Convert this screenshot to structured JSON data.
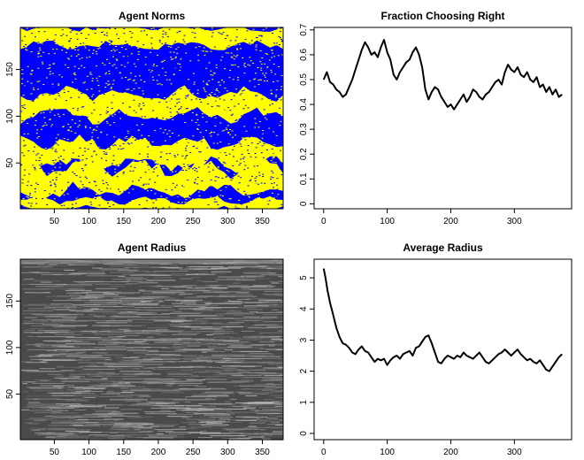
{
  "chart_data": [
    {
      "type": "heatmap",
      "title": "Agent Norms",
      "xlim": [
        1,
        380
      ],
      "ylim": [
        1,
        195
      ],
      "x_ticks": [
        50,
        100,
        150,
        200,
        250,
        300,
        350
      ],
      "y_ticks": [
        50,
        100,
        150
      ],
      "x_tick_labels": [
        "50",
        "100",
        "150",
        "200",
        "250",
        "300",
        "350"
      ],
      "y_tick_labels": [
        "50",
        "100",
        "150"
      ],
      "colors": {
        "left": "#0000ff",
        "right": "#ffff00"
      },
      "bands": [
        {
          "y_from": 0,
          "y_to": 15,
          "dominant": "right"
        },
        {
          "y_from": 15,
          "y_to": 45,
          "dominant": "left-right-mixed"
        },
        {
          "y_from": 45,
          "y_to": 75,
          "dominant": "right"
        },
        {
          "y_from": 75,
          "y_to": 100,
          "dominant": "left"
        },
        {
          "y_from": 100,
          "y_to": 125,
          "dominant": "right"
        },
        {
          "y_from": 125,
          "y_to": 175,
          "dominant": "left"
        },
        {
          "y_from": 175,
          "y_to": 195,
          "dominant": "right"
        }
      ]
    },
    {
      "type": "line",
      "title": "Fraction Choosing Right",
      "xlim": [
        -15,
        390
      ],
      "ylim": [
        -0.02,
        0.71
      ],
      "x_ticks": [
        0,
        100,
        200,
        300
      ],
      "y_ticks": [
        0,
        0.1,
        0.2,
        0.3,
        0.4,
        0.5,
        0.6,
        0.7
      ],
      "x_tick_labels": [
        "0",
        "100",
        "200",
        "300"
      ],
      "y_tick_labels": [
        "0",
        "0.1",
        "0.2",
        "0.3",
        "0.4",
        "0.5",
        "0.6",
        "0.7"
      ],
      "x": [
        0,
        5,
        10,
        15,
        20,
        25,
        30,
        35,
        40,
        45,
        50,
        55,
        60,
        65,
        70,
        75,
        80,
        85,
        90,
        95,
        100,
        105,
        110,
        115,
        120,
        125,
        130,
        135,
        140,
        145,
        150,
        155,
        160,
        165,
        170,
        175,
        180,
        185,
        190,
        195,
        200,
        205,
        210,
        215,
        220,
        225,
        230,
        235,
        240,
        245,
        250,
        255,
        260,
        265,
        270,
        275,
        280,
        285,
        290,
        295,
        300,
        305,
        310,
        315,
        320,
        325,
        330,
        335,
        340,
        345,
        350,
        355,
        360,
        365,
        370,
        375
      ],
      "y": [
        0.5,
        0.53,
        0.49,
        0.48,
        0.46,
        0.45,
        0.43,
        0.44,
        0.47,
        0.5,
        0.54,
        0.58,
        0.62,
        0.65,
        0.63,
        0.6,
        0.61,
        0.59,
        0.63,
        0.66,
        0.61,
        0.58,
        0.52,
        0.5,
        0.53,
        0.55,
        0.57,
        0.58,
        0.61,
        0.63,
        0.6,
        0.55,
        0.46,
        0.42,
        0.45,
        0.47,
        0.46,
        0.43,
        0.41,
        0.39,
        0.4,
        0.38,
        0.4,
        0.42,
        0.44,
        0.41,
        0.43,
        0.46,
        0.45,
        0.43,
        0.42,
        0.44,
        0.45,
        0.47,
        0.49,
        0.5,
        0.48,
        0.53,
        0.56,
        0.54,
        0.53,
        0.55,
        0.52,
        0.51,
        0.53,
        0.5,
        0.49,
        0.51,
        0.47,
        0.48,
        0.45,
        0.47,
        0.44,
        0.46,
        0.43,
        0.44
      ],
      "color": "#000000"
    },
    {
      "type": "heatmap",
      "title": "Agent Radius",
      "xlim": [
        1,
        380
      ],
      "ylim": [
        1,
        195
      ],
      "x_ticks": [
        50,
        100,
        150,
        200,
        250,
        300,
        350
      ],
      "y_ticks": [
        50,
        100,
        150
      ],
      "x_tick_labels": [
        "50",
        "100",
        "150",
        "200",
        "250",
        "300",
        "350"
      ],
      "y_tick_labels": [
        "50",
        "100",
        "150"
      ],
      "colors": {
        "low": "#4a4a4a",
        "high": "#b8b8b8"
      }
    },
    {
      "type": "line",
      "title": "Average Radius",
      "xlim": [
        -15,
        390
      ],
      "ylim": [
        -0.2,
        5.6
      ],
      "x_ticks": [
        0,
        100,
        200,
        300
      ],
      "y_ticks": [
        0,
        1,
        2,
        3,
        4,
        5
      ],
      "x_tick_labels": [
        "0",
        "100",
        "200",
        "300"
      ],
      "y_tick_labels": [
        "0",
        "1",
        "2",
        "3",
        "4",
        "5"
      ],
      "x": [
        0,
        3,
        6,
        10,
        15,
        20,
        25,
        30,
        35,
        40,
        45,
        50,
        55,
        60,
        65,
        70,
        75,
        80,
        85,
        90,
        95,
        100,
        105,
        110,
        115,
        120,
        125,
        130,
        135,
        140,
        145,
        150,
        155,
        160,
        165,
        170,
        175,
        180,
        185,
        190,
        195,
        200,
        205,
        210,
        215,
        220,
        225,
        230,
        235,
        240,
        245,
        250,
        255,
        260,
        265,
        270,
        275,
        280,
        285,
        290,
        295,
        300,
        305,
        310,
        315,
        320,
        325,
        330,
        335,
        340,
        345,
        350,
        355,
        360,
        365,
        370,
        375
      ],
      "y": [
        5.3,
        5.0,
        4.6,
        4.2,
        3.8,
        3.4,
        3.1,
        2.9,
        2.85,
        2.75,
        2.6,
        2.55,
        2.7,
        2.8,
        2.65,
        2.6,
        2.45,
        2.3,
        2.4,
        2.35,
        2.4,
        2.2,
        2.35,
        2.45,
        2.5,
        2.4,
        2.55,
        2.6,
        2.65,
        2.5,
        2.75,
        2.8,
        2.95,
        3.1,
        3.15,
        2.9,
        2.6,
        2.3,
        2.25,
        2.4,
        2.5,
        2.45,
        2.4,
        2.5,
        2.45,
        2.6,
        2.5,
        2.45,
        2.4,
        2.5,
        2.6,
        2.45,
        2.3,
        2.25,
        2.35,
        2.45,
        2.55,
        2.6,
        2.7,
        2.6,
        2.5,
        2.6,
        2.7,
        2.55,
        2.45,
        2.35,
        2.4,
        2.3,
        2.25,
        2.35,
        2.2,
        2.05,
        2.0,
        2.15,
        2.3,
        2.45,
        2.55
      ],
      "color": "#000000"
    }
  ]
}
